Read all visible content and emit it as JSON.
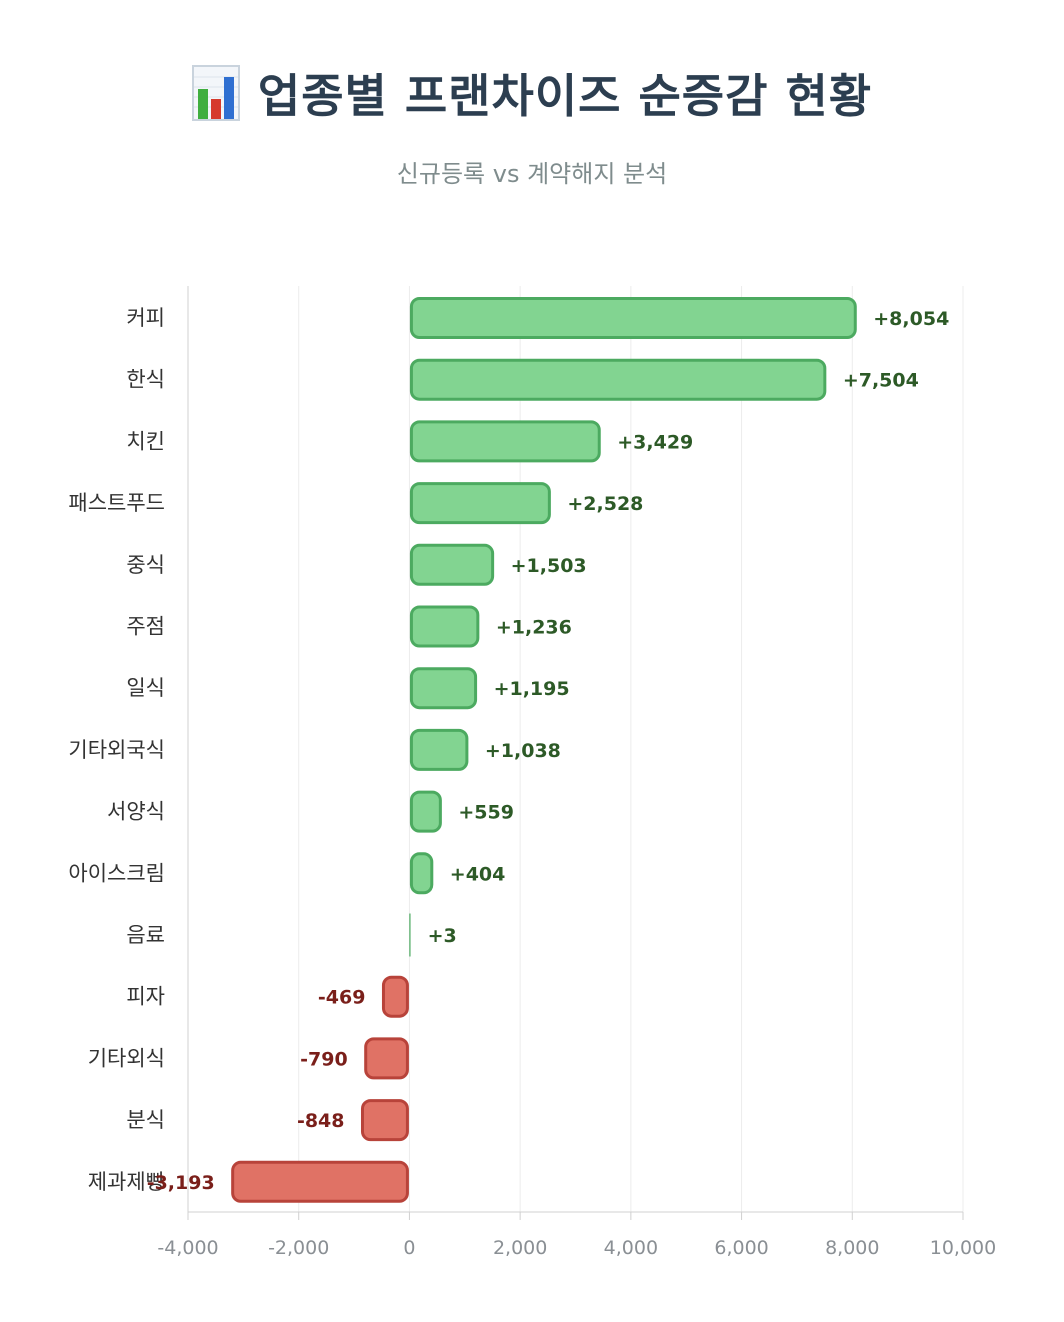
{
  "header": {
    "title": "업종별 프랜차이즈 순증감 현황",
    "subtitle": "신규등록 vs 계약해지 분석",
    "icon": "bar-chart-icon"
  },
  "chart_data": {
    "type": "bar",
    "orientation": "horizontal",
    "categories": [
      "커피",
      "한식",
      "치킨",
      "패스트푸드",
      "중식",
      "주점",
      "일식",
      "기타외국식",
      "서양식",
      "아이스크림",
      "음료",
      "피자",
      "기타외식",
      "분식",
      "제과제빵"
    ],
    "values": [
      8054,
      7504,
      3429,
      2528,
      1503,
      1236,
      1195,
      1038,
      559,
      404,
      3,
      -469,
      -790,
      -848,
      -3193
    ],
    "value_labels": [
      "+8,054",
      "+7,504",
      "+3,429",
      "+2,528",
      "+1,503",
      "+1,236",
      "+1,195",
      "+1,038",
      "+559",
      "+404",
      "+3",
      "-469",
      "-790",
      "-848",
      "-3,193"
    ],
    "xlim": [
      -4000,
      10000
    ],
    "x_ticks": [
      -4000,
      -2000,
      0,
      2000,
      4000,
      6000,
      8000,
      10000
    ],
    "x_tick_labels": [
      "-4,000",
      "-2,000",
      "0",
      "2,000",
      "4,000",
      "6,000",
      "8,000",
      "10,000"
    ],
    "grid": true,
    "colors": {
      "positive_fill": "#82d491",
      "positive_stroke": "#4caa60",
      "negative_fill": "#e07265",
      "negative_stroke": "#b8433a",
      "positive_label": "#2d5a27",
      "negative_label": "#7a1f1a"
    }
  }
}
